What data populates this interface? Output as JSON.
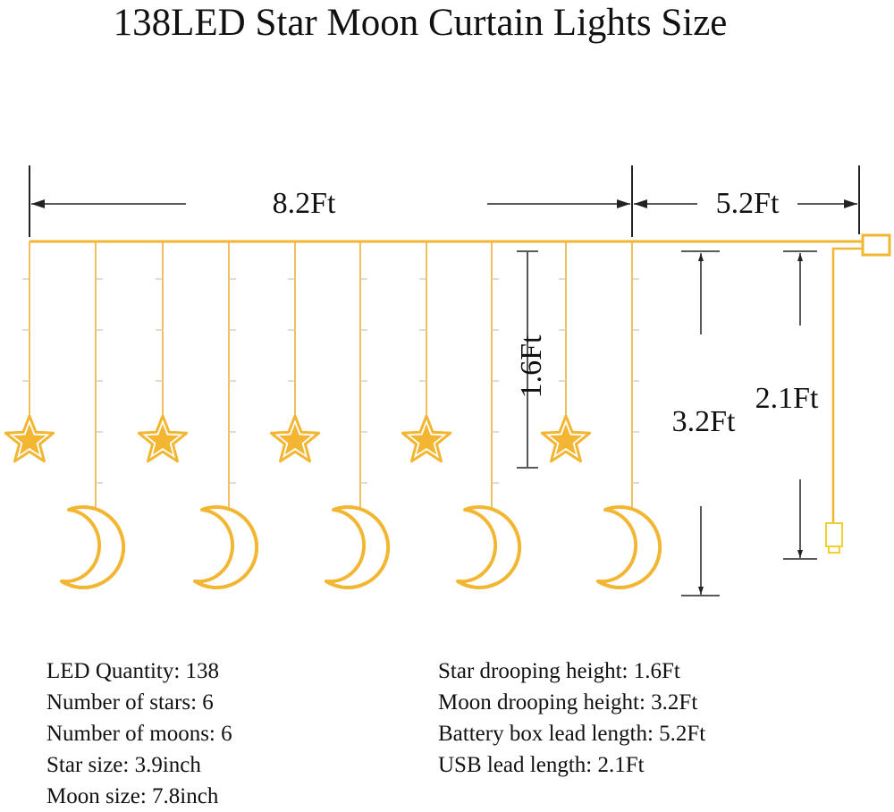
{
  "title": "138LED Star Moon Curtain Lights Size",
  "dimensions": {
    "curtain_width": "8.2Ft",
    "battery_lead": "5.2Ft",
    "star_drop": "1.6Ft",
    "moon_drop": "3.2Ft",
    "usb_lead": "2.1Ft"
  },
  "colors": {
    "light": "#f2b632",
    "wire": "#f0c060",
    "dimension": "#222222"
  },
  "specs_left": [
    "LED Quantity: 138",
    "Number of stars: 6",
    "Number of moons: 6",
    "Star size: 3.9inch",
    "Moon size: 7.8inch"
  ],
  "specs_right": [
    "Star drooping height: 1.6Ft",
    "Moon drooping height: 3.2Ft",
    "Battery box lead length: 5.2Ft",
    "USB lead length: 2.1Ft"
  ]
}
